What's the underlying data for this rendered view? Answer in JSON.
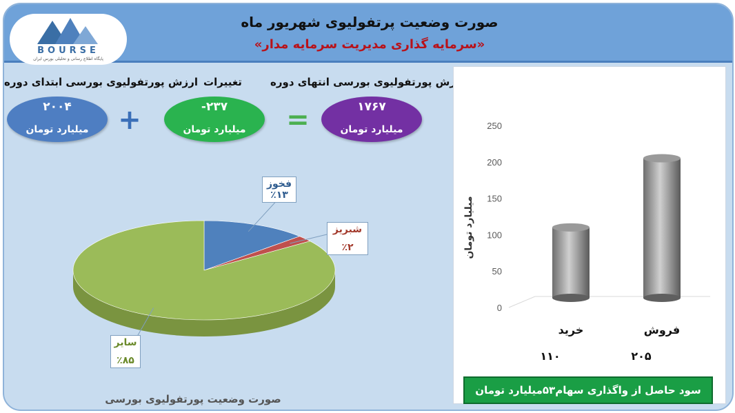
{
  "header": {
    "title": "صورت وضعیت پرتفولیوی شهریور ماه",
    "subtitle": "«سرمایه گذاری مدیریت سرمایه مدار»",
    "logo_text": "BOURSE",
    "logo_sub": "پایگاه اطلاع رسانی و تحلیلی بورس ایران"
  },
  "kpis": {
    "start": {
      "label": "ارزش پورتفولیوی بورسی ابتدای دوره",
      "value": "۲۰۰۴",
      "unit": "میلیارد تومان"
    },
    "change": {
      "label": "تغییرات",
      "value": "-۲۳۷",
      "unit": "میلیارد تومان"
    },
    "end": {
      "label": "ارزش پورتفولیوی بورسی انتهای دوره",
      "value": "۱۷۶۷",
      "unit": "میلیارد تومان"
    },
    "plus_symbol": "+",
    "equals_symbol": "="
  },
  "colors": {
    "blue": "#4e7ec2",
    "green": "#2ab34f",
    "purple": "#7330a3",
    "pie_green": "#9bbb59",
    "pie_blue": "#4f81bd",
    "pie_red": "#c0504d"
  },
  "footer": {
    "pie_caption": "صورت وضعیت پورتفولیوی بورسی",
    "bar_note": "سود حاصل از واگذاری سهام۵۳میلیارد تومان"
  },
  "chart_data": [
    {
      "type": "pie",
      "title": "",
      "slices": [
        {
          "label": "فخوز",
          "value": 13,
          "value_label": "٪۱۳"
        },
        {
          "label": "شبریز",
          "value": 2,
          "value_label": "٪۲"
        },
        {
          "label": "سایر",
          "value": 85,
          "value_label": "٪۸۵"
        }
      ],
      "caption": "صورت وضعیت پورتفولیوی بورسی"
    },
    {
      "type": "bar",
      "categories": [
        "فروش",
        "خرید"
      ],
      "values": [
        205,
        110
      ],
      "value_labels": [
        "۲۰۵",
        "۱۱۰"
      ],
      "ylabel": "میلیارد تومان",
      "ylim": [
        0,
        250
      ],
      "yticks": [
        "0",
        "50",
        "100",
        "150",
        "200",
        "250"
      ],
      "grid": false
    }
  ]
}
